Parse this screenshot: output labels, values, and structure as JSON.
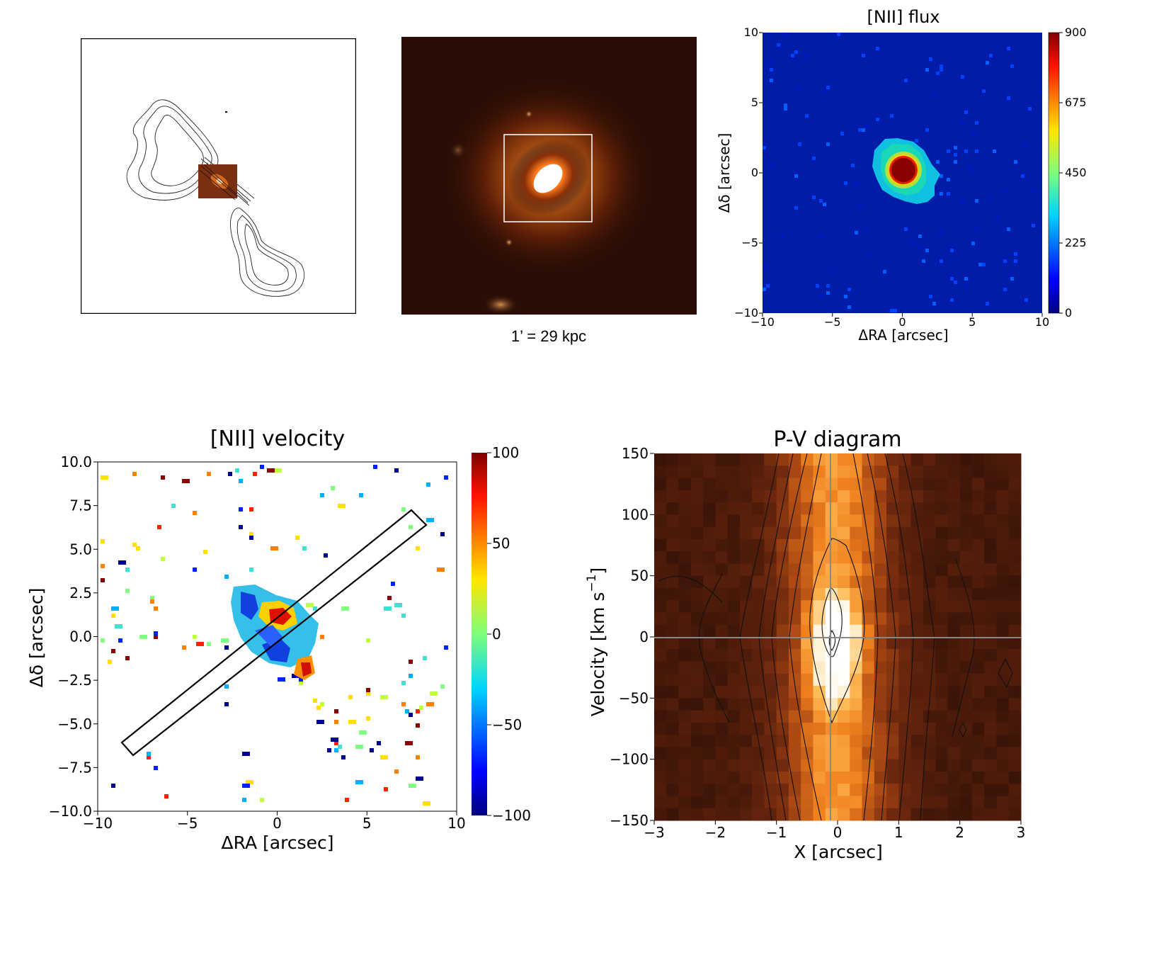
{
  "chart_data": [
    {
      "id": "radio",
      "type": "image",
      "description_label": "radio contour with inset",
      "colors": {
        "frame": "#000000",
        "inset": "#7a2e12"
      }
    },
    {
      "id": "optical",
      "type": "image",
      "caption": "1’ = 29 kpc",
      "colors": {
        "bg": "#2a0d05",
        "core": "#ff7a1a",
        "box": "#ffffff"
      }
    },
    {
      "id": "flux",
      "type": "heatmap",
      "title": "[NII] flux",
      "xlabel": "ΔRA [arcsec]",
      "ylabel": "Δδ [arcsec]",
      "xlim": [
        -10,
        10
      ],
      "ylim": [
        -10,
        10
      ],
      "xticks": [
        "−10",
        "−5",
        "0",
        "5",
        "10"
      ],
      "yticks": [
        "10",
        "5",
        "0",
        "−5",
        "−10"
      ],
      "colorbar": {
        "min": 0,
        "max": 900,
        "ticks": [
          "900",
          "675",
          "450",
          "225",
          "0"
        ]
      },
      "peak": {
        "x": 0,
        "y": 0,
        "value": 900
      }
    },
    {
      "id": "velocity",
      "type": "heatmap",
      "title": "[NII] velocity",
      "xlabel": "ΔRA [arcsec]",
      "ylabel": "Δδ [arcsec]",
      "xlim": [
        -10,
        10
      ],
      "ylim": [
        -10,
        10
      ],
      "xticks": [
        "−10",
        "−5",
        "0",
        "5",
        "10"
      ],
      "yticks": [
        "10.0",
        "7.5",
        "5.0",
        "2.5",
        "0.0",
        "−2.5",
        "−5.0",
        "−7.5",
        "−10.0"
      ],
      "colorbar": {
        "min": -100,
        "max": 100,
        "ticks": [
          "100",
          "50",
          "0",
          "−50",
          "−100"
        ]
      },
      "slit": {
        "angle_deg": 40,
        "center": [
          0,
          0
        ],
        "length_arcsec": 22,
        "width_arcsec": 0.8
      }
    },
    {
      "id": "pv",
      "type": "heatmap",
      "title": "P-V diagram",
      "xlabel": "X [arcsec]",
      "ylabel": "Velocity [km s",
      "ylabel_sup": "−1",
      "ylabel_end": "]",
      "xlim": [
        -3,
        3
      ],
      "ylim": [
        -150,
        150
      ],
      "xticks": [
        "−3",
        "−2",
        "−1",
        "0",
        "1",
        "2",
        "3"
      ],
      "yticks": [
        "150",
        "100",
        "50",
        "0",
        "−50",
        "−100",
        "−150"
      ]
    }
  ]
}
